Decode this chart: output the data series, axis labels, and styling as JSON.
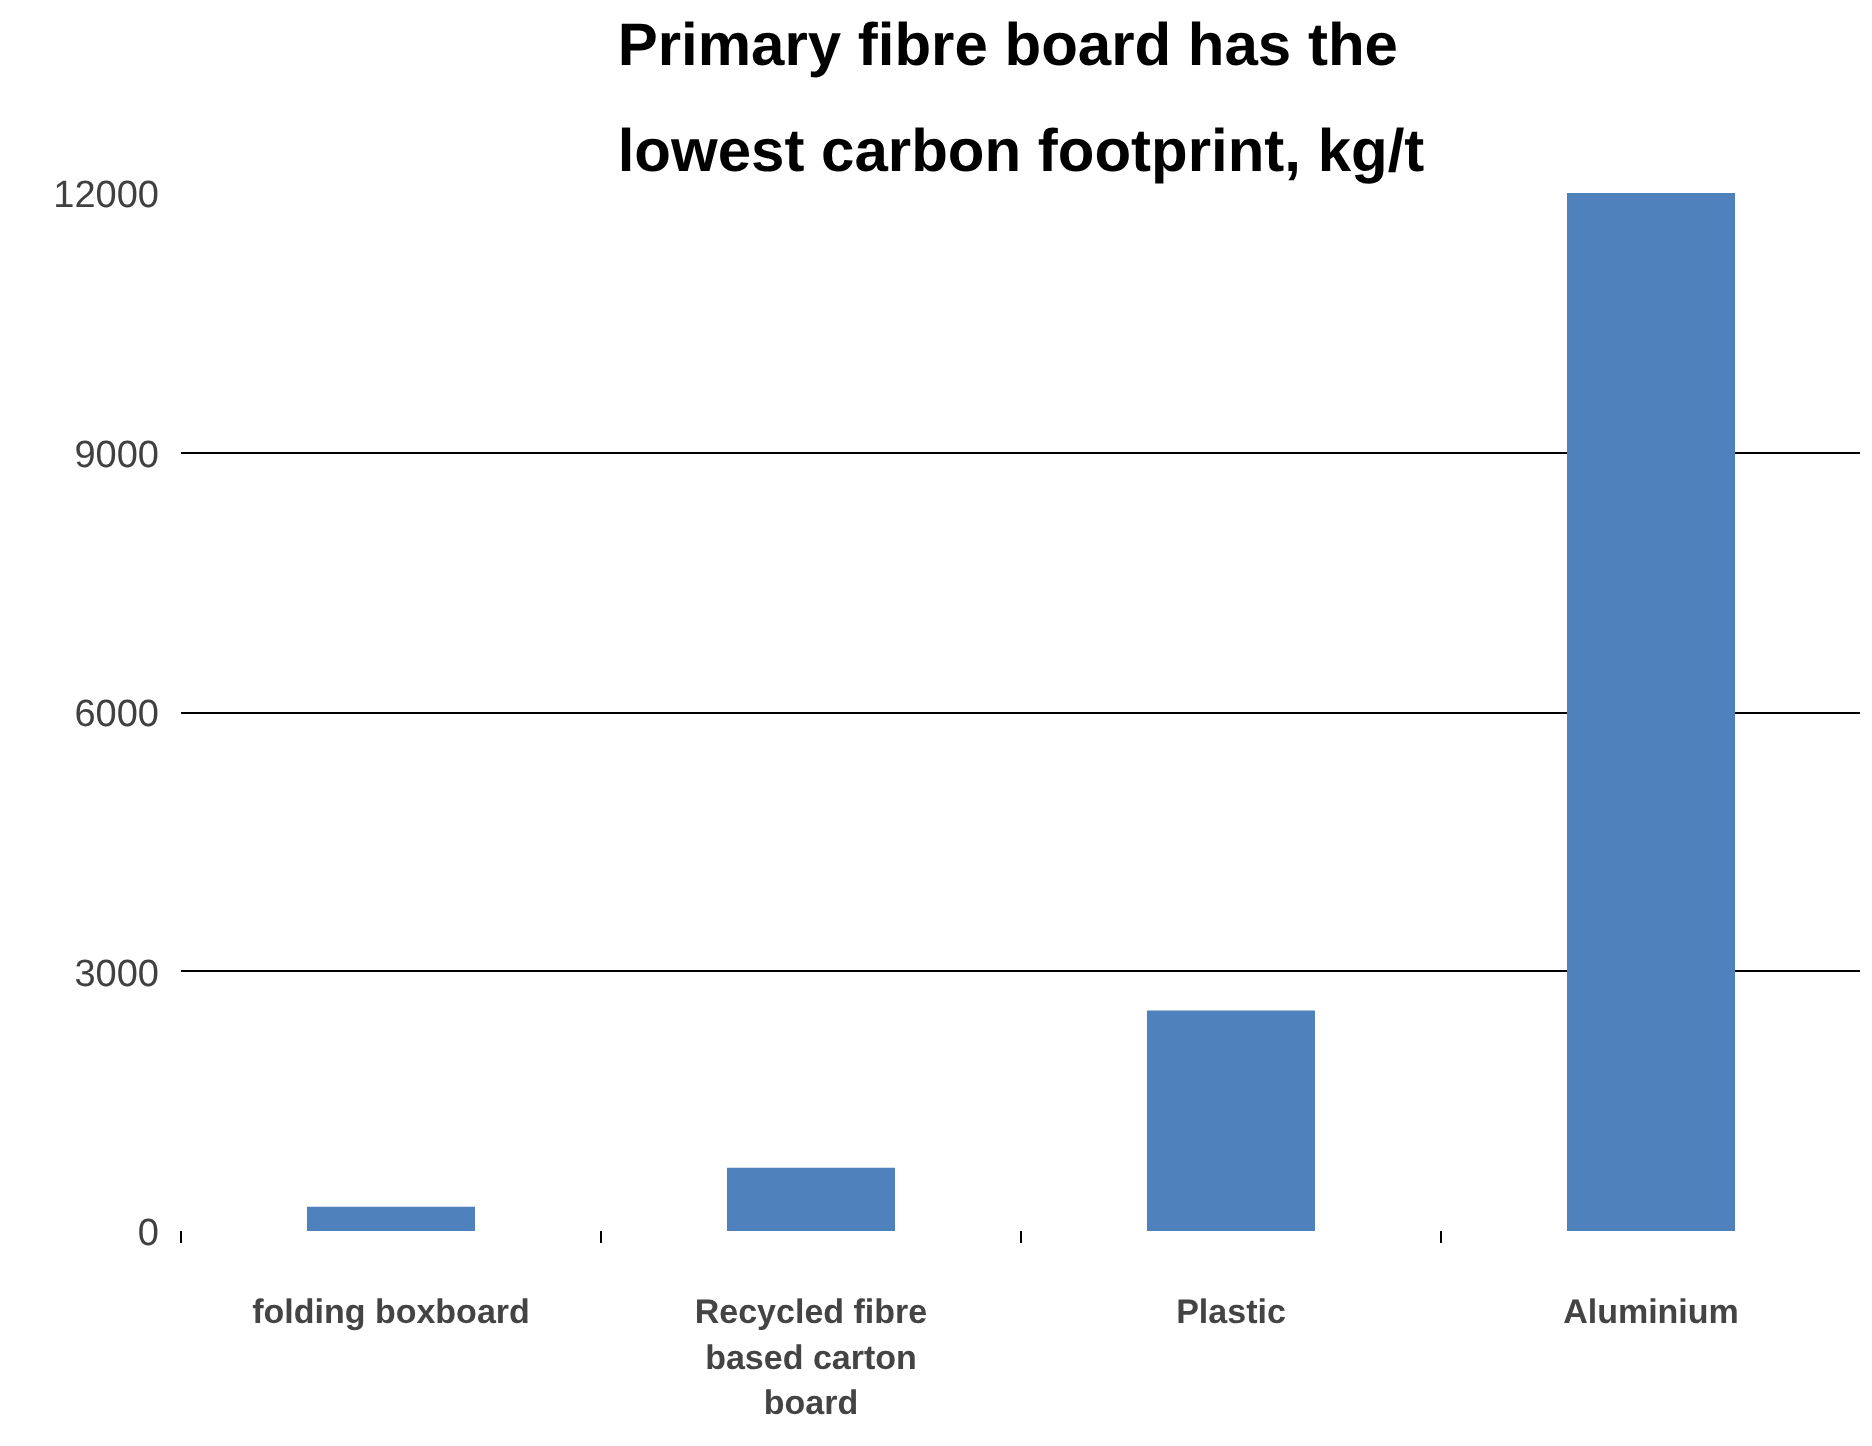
{
  "chart_data": {
    "type": "bar",
    "title": "Primary fibre board has the lowest carbon footprint, kg/t",
    "categories": [
      "folding boxboard",
      "Recycled fibre based carton board",
      "Plastic",
      "Aluminium"
    ],
    "values": [
      280,
      730,
      2550,
      12000
    ],
    "color": "#4f81bd",
    "ylim": [
      0,
      12000
    ],
    "yticks": [
      0,
      3000,
      6000,
      9000,
      12000
    ],
    "grid": "y"
  }
}
